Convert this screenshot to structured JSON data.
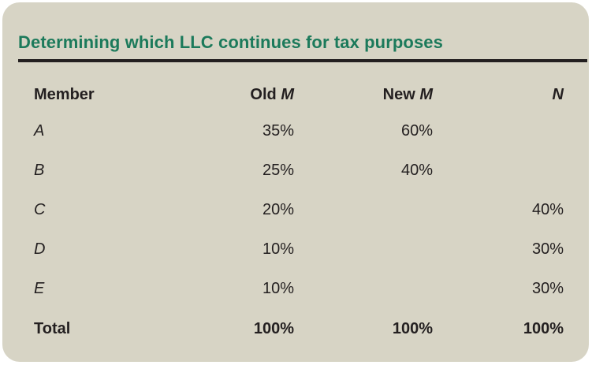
{
  "title": "Determining which LLC continues for tax purposes",
  "headers": {
    "member": "Member",
    "old_prefix": "Old",
    "old_var": "M",
    "new_prefix": "New",
    "new_var": "M",
    "n_var": "N"
  },
  "rows": [
    {
      "member": "A",
      "old_m": "35%",
      "new_m": "60%",
      "n": ""
    },
    {
      "member": "B",
      "old_m": "25%",
      "new_m": "40%",
      "n": ""
    },
    {
      "member": "C",
      "old_m": "20%",
      "new_m": "",
      "n": "40%"
    },
    {
      "member": "D",
      "old_m": "10%",
      "new_m": "",
      "n": "30%"
    },
    {
      "member": "E",
      "old_m": "10%",
      "new_m": "",
      "n": "30%"
    }
  ],
  "total": {
    "label": "Total",
    "old_m": "100%",
    "new_m": "100%",
    "n": "100%"
  }
}
